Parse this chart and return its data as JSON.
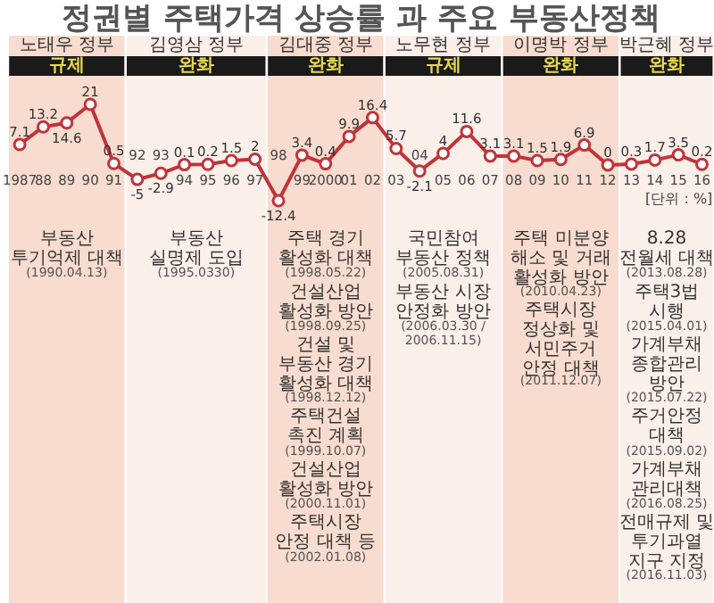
{
  "chart_data": {
    "type": "line",
    "title": "정권별 주택가격 상승률 과 주요 부동산정책",
    "categories": [
      "1987",
      "88",
      "89",
      "90",
      "91",
      "92",
      "93",
      "94",
      "95",
      "96",
      "97",
      "98",
      "99",
      "2000",
      "01",
      "02",
      "03",
      "04",
      "05",
      "06",
      "07",
      "08",
      "09",
      "10",
      "11",
      "12",
      "13",
      "14",
      "15",
      "16"
    ],
    "series": [
      {
        "color": "#c0343a",
        "values": [
          7.1,
          13.2,
          14.6,
          21,
          0.5,
          -5,
          -2.9,
          0.1,
          0.2,
          1.5,
          2,
          -12.4,
          3.4,
          0.4,
          9.9,
          16.4,
          5.7,
          -2.1,
          4,
          11.6,
          3.1,
          3.1,
          1.5,
          1.9,
          6.9,
          0,
          0.3,
          1.7,
          3.5,
          0.2
        ]
      }
    ],
    "data_labels": true,
    "marker": "circle",
    "line_style": "solid",
    "grid": false,
    "bands": [
      {
        "axis": "x",
        "from": "1987",
        "to": "91",
        "color": "#f7dccf",
        "label": "노태우 정부\n규제"
      },
      {
        "axis": "x",
        "from": "92",
        "to": "97",
        "color": "#fbefe9",
        "label": "김영삼 정부\n완화"
      },
      {
        "axis": "x",
        "from": "98",
        "to": "02",
        "color": "#f7dccf",
        "label": "김대중 정부\n완화"
      },
      {
        "axis": "x",
        "from": "03",
        "to": "07",
        "color": "#fbefe9",
        "label": "노무현 정부\n규제"
      },
      {
        "axis": "x",
        "from": "08",
        "to": "12",
        "color": "#f7dccf",
        "label": "이명박 정부\n완화"
      },
      {
        "axis": "x",
        "from": "13",
        "to": "16",
        "color": "#fbefe9",
        "label": "박근혜 정부\n완화"
      }
    ],
    "annotations": [
      "[단위 : %]",
      "부동산\n투기억제 대책\n(1990.04.13)",
      "부동산\n실명제 도입\n(1995.0330)",
      "주택 경기\n활성화 대책\n(1998.05.22)\n\n건설산업\n활성화 방안\n(1998.09.25)\n\n건설 및\n부동산 경기\n활성화 대책\n(1998.12.12)\n\n주택건설\n촉진 계획\n(1999.10.07)\n\n건설산업\n활성화 방안\n(2000.11.01)\n\n주택시장\n안정 대책 등\n(2002.01.08)",
      "국민참여\n부동산 정책\n(2005.08.31)\n\n부동산 시장\n안정화 방안\n(2006.03.30 /\n2006.11.15)",
      "주택 미분양\n해소 및 거래\n활성화 방안\n(2010.04.23)\n\n주택시장\n정상화 및\n서민주거\n안정 대책\n(2011.12.07)",
      "8.28\n전월세 대책\n(2013.08.28)\n\n주택3법\n시행\n(2015.04.01)\n\n가계부채\n종합관리\n방안\n(2015.07.22)\n\n주거안정\n대책\n(2015.09.02)\n\n가계부채\n관리대책\n(2016.08.25)\n\n전매규제 및\n투기과열\n지구 지정\n(2016.11.03)"
    ]
  }
}
